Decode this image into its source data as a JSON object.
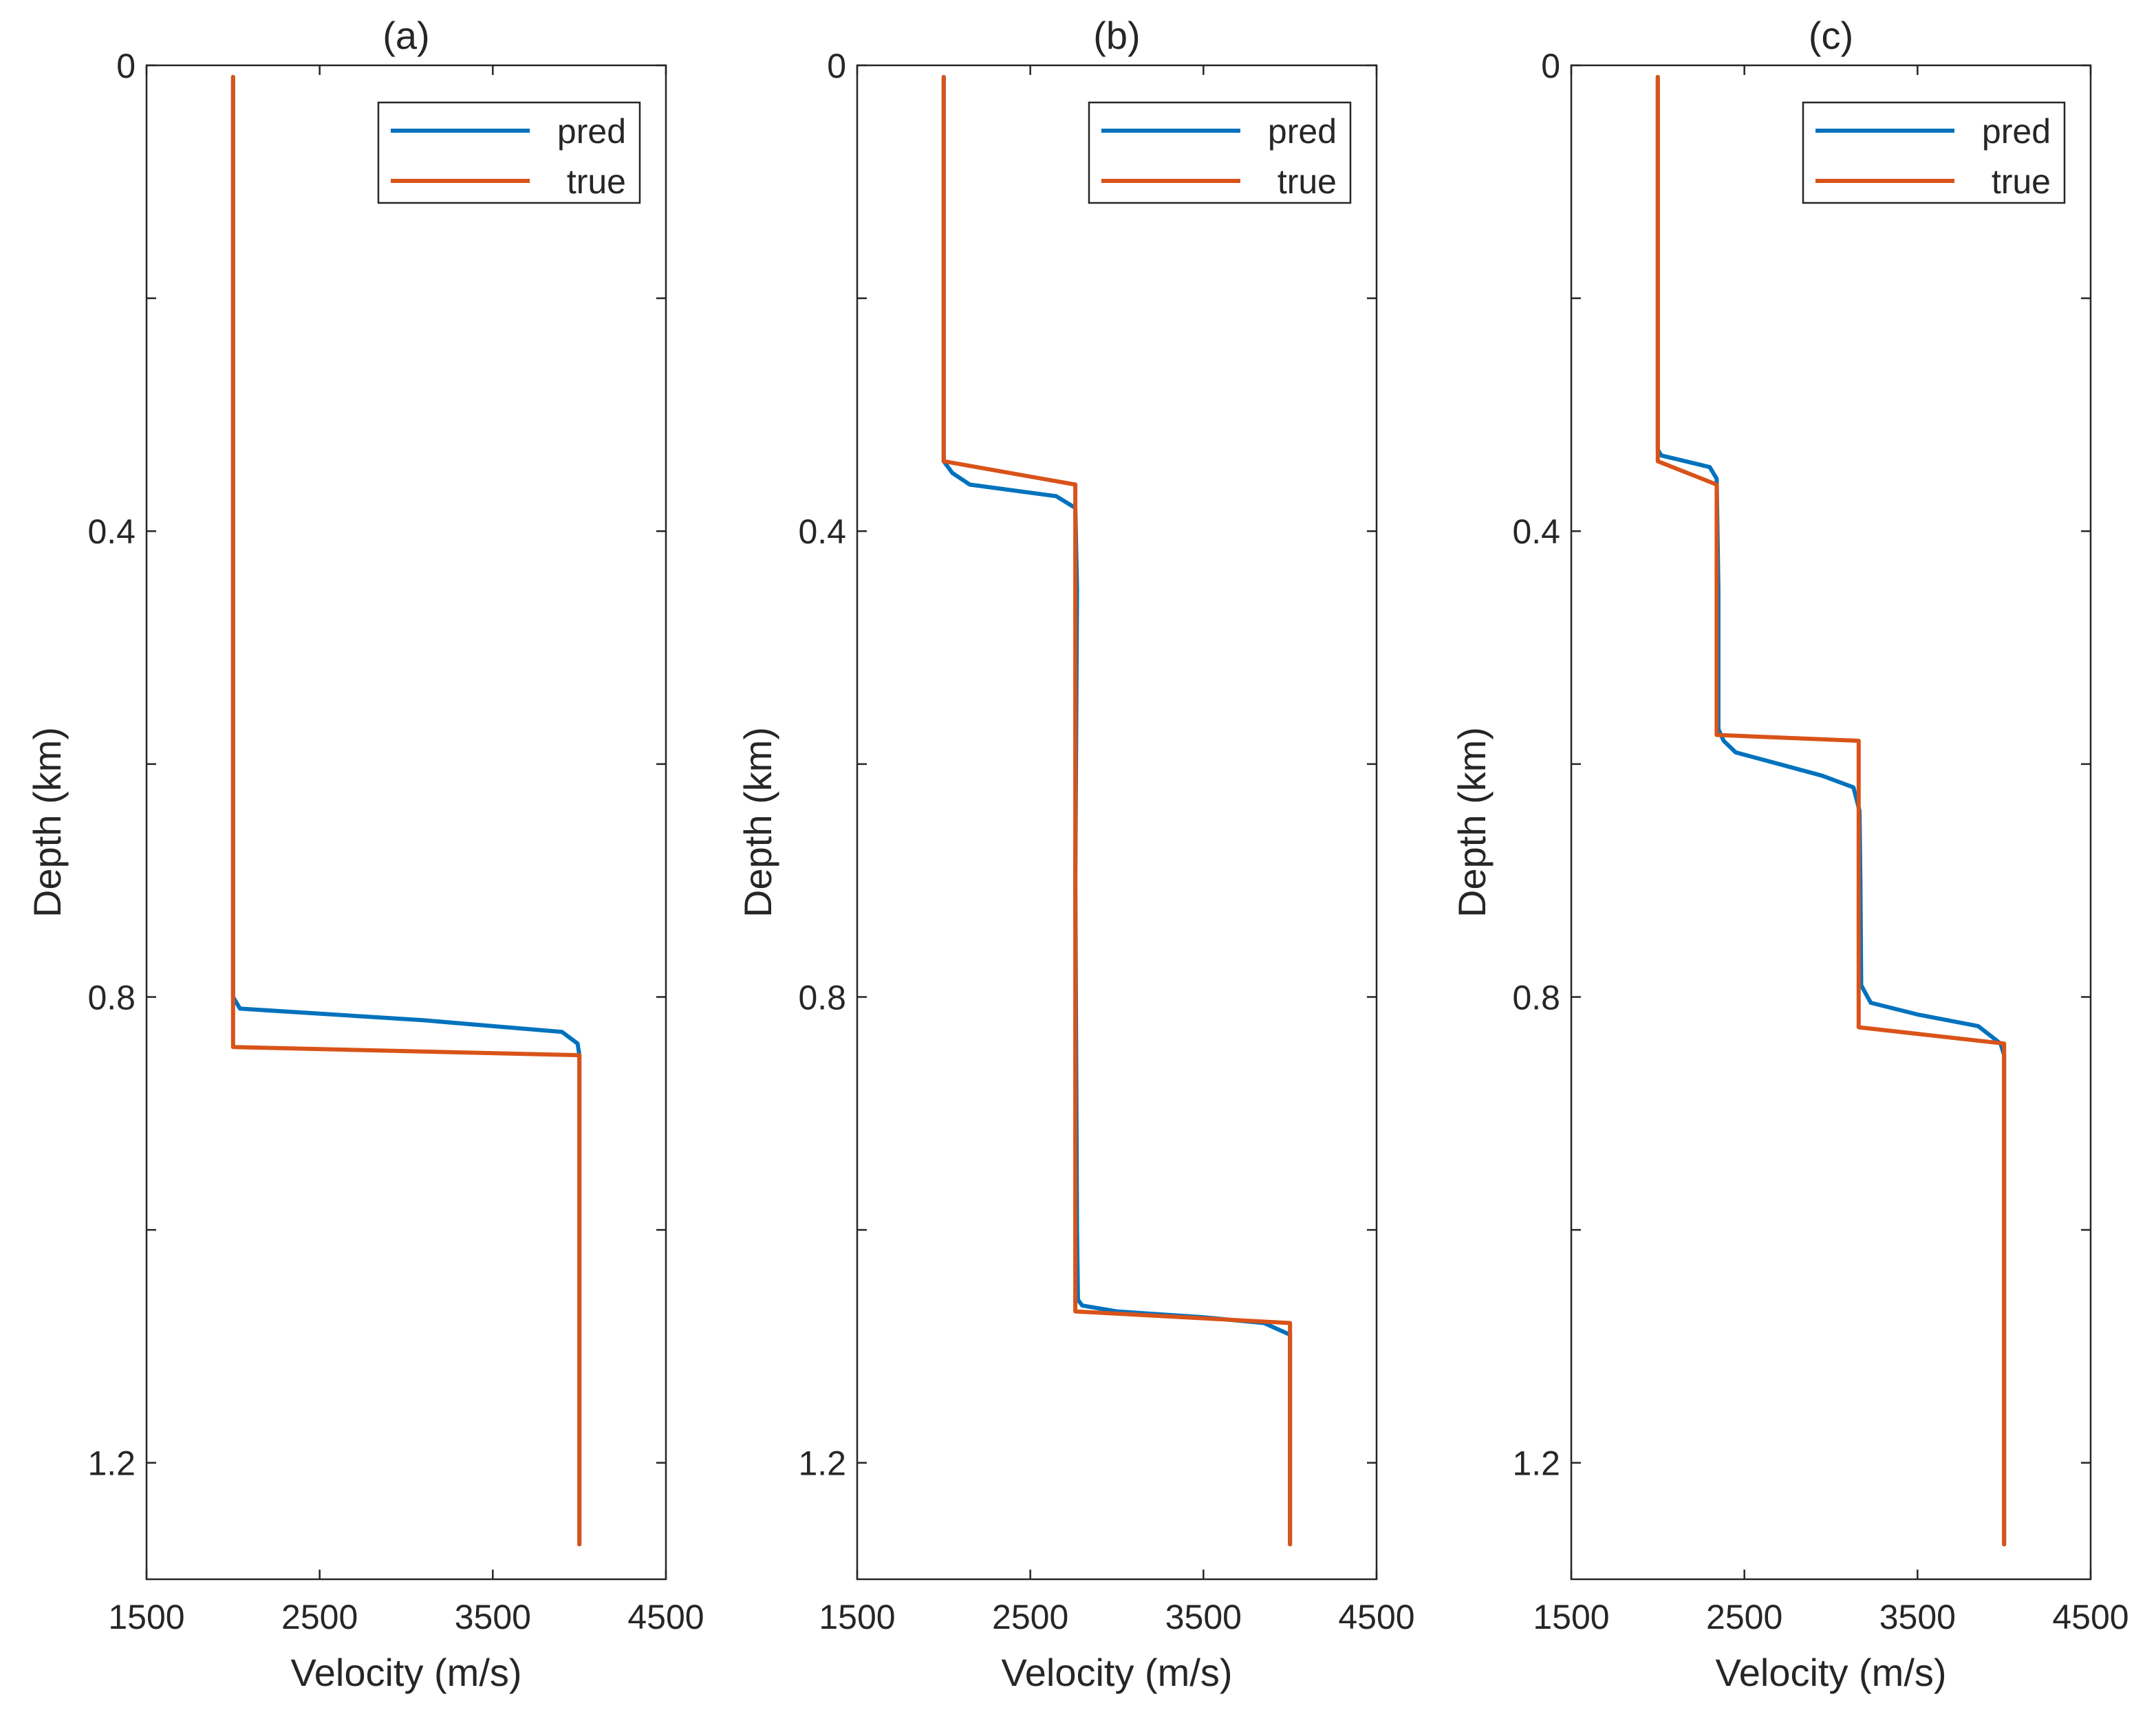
{
  "chart_data": [
    {
      "type": "line",
      "title": "(a)",
      "xlabel": "Velocity (m/s)",
      "ylabel": "Depth (km)",
      "xlim": [
        1500,
        4500
      ],
      "ylim": [
        1.3,
        0
      ],
      "x_ticks": [
        1500,
        2500,
        3500,
        4500
      ],
      "x_tick_labels": [
        "1500",
        "2500",
        "3500",
        "4500"
      ],
      "y_ticks": [
        0,
        0.2,
        0.4,
        0.6,
        0.8,
        1.0,
        1.2
      ],
      "y_tick_labels": [
        "0",
        "",
        "0.4",
        "",
        "0.8",
        "",
        "1.2"
      ],
      "grid": false,
      "legend": {
        "placement": "top-right",
        "entries": [
          "pred",
          "true"
        ]
      },
      "series": [
        {
          "name": "pred",
          "color": "#0072BD",
          "points": [
            [
              2000,
              0.01
            ],
            [
              2000,
              0.8
            ],
            [
              2040,
              0.81
            ],
            [
              3100,
              0.82
            ],
            [
              3900,
              0.83
            ],
            [
              3990,
              0.84
            ],
            [
              4000,
              0.85
            ],
            [
              4000,
              1.27
            ]
          ]
        },
        {
          "name": "true",
          "color": "#D95319",
          "points": [
            [
              2000,
              0.01
            ],
            [
              2000,
              0.843
            ],
            [
              4000,
              0.85
            ],
            [
              4000,
              1.27
            ]
          ]
        }
      ]
    },
    {
      "type": "line",
      "title": "(b)",
      "xlabel": "Velocity (m/s)",
      "ylabel": "Depth (km)",
      "xlim": [
        1500,
        4500
      ],
      "ylim": [
        1.3,
        0
      ],
      "x_ticks": [
        1500,
        2500,
        3500,
        4500
      ],
      "x_tick_labels": [
        "1500",
        "2500",
        "3500",
        "4500"
      ],
      "y_ticks": [
        0,
        0.2,
        0.4,
        0.6,
        0.8,
        1.0,
        1.2
      ],
      "y_tick_labels": [
        "0",
        "",
        "0.4",
        "",
        "0.8",
        "",
        "1.2"
      ],
      "grid": false,
      "legend": {
        "placement": "top-right",
        "entries": [
          "pred",
          "true"
        ]
      },
      "series": [
        {
          "name": "pred",
          "color": "#0072BD",
          "points": [
            [
              2000,
              0.01
            ],
            [
              2000,
              0.34
            ],
            [
              2050,
              0.35
            ],
            [
              2150,
              0.36
            ],
            [
              2650,
              0.37
            ],
            [
              2760,
              0.38
            ],
            [
              2770,
              0.45
            ],
            [
              2760,
              0.7
            ],
            [
              2770,
              1.0
            ],
            [
              2775,
              1.06
            ],
            [
              2800,
              1.065
            ],
            [
              3000,
              1.07
            ],
            [
              3500,
              1.075
            ],
            [
              3850,
              1.08
            ],
            [
              4000,
              1.09
            ],
            [
              4000,
              1.27
            ]
          ]
        },
        {
          "name": "true",
          "color": "#D95319",
          "points": [
            [
              2000,
              0.01
            ],
            [
              2000,
              0.34
            ],
            [
              2760,
              0.36
            ],
            [
              2760,
              1.07
            ],
            [
              4000,
              1.08
            ],
            [
              4000,
              1.27
            ]
          ]
        }
      ]
    },
    {
      "type": "line",
      "title": "(c)",
      "xlabel": "Velocity (m/s)",
      "ylabel": "Depth (km)",
      "xlim": [
        1500,
        4500
      ],
      "ylim": [
        1.3,
        0
      ],
      "x_ticks": [
        1500,
        2500,
        3500,
        4500
      ],
      "x_tick_labels": [
        "1500",
        "2500",
        "3500",
        "4500"
      ],
      "y_ticks": [
        0,
        0.2,
        0.4,
        0.6,
        0.8,
        1.0,
        1.2
      ],
      "y_tick_labels": [
        "0",
        "",
        "0.4",
        "",
        "0.8",
        "",
        "1.2"
      ],
      "grid": false,
      "legend": {
        "placement": "top-right",
        "entries": [
          "pred",
          "true"
        ]
      },
      "series": [
        {
          "name": "pred",
          "color": "#0072BD",
          "points": [
            [
              2000,
              0.01
            ],
            [
              2000,
              0.33
            ],
            [
              2020,
              0.335
            ],
            [
              2300,
              0.345
            ],
            [
              2340,
              0.355
            ],
            [
              2350,
              0.45
            ],
            [
              2350,
              0.57
            ],
            [
              2380,
              0.58
            ],
            [
              2450,
              0.59
            ],
            [
              2700,
              0.6
            ],
            [
              2950,
              0.61
            ],
            [
              3130,
              0.62
            ],
            [
              3165,
              0.64
            ],
            [
              3170,
              0.7
            ],
            [
              3175,
              0.79
            ],
            [
              3230,
              0.805
            ],
            [
              3500,
              0.815
            ],
            [
              3850,
              0.825
            ],
            [
              3980,
              0.84
            ],
            [
              4000,
              0.85
            ],
            [
              4000,
              1.27
            ]
          ]
        },
        {
          "name": "true",
          "color": "#D95319",
          "points": [
            [
              2000,
              0.01
            ],
            [
              2000,
              0.34
            ],
            [
              2340,
              0.36
            ],
            [
              2340,
              0.575
            ],
            [
              3160,
              0.58
            ],
            [
              3160,
              0.826
            ],
            [
              4000,
              0.84
            ],
            [
              4000,
              1.27
            ]
          ]
        }
      ]
    }
  ]
}
